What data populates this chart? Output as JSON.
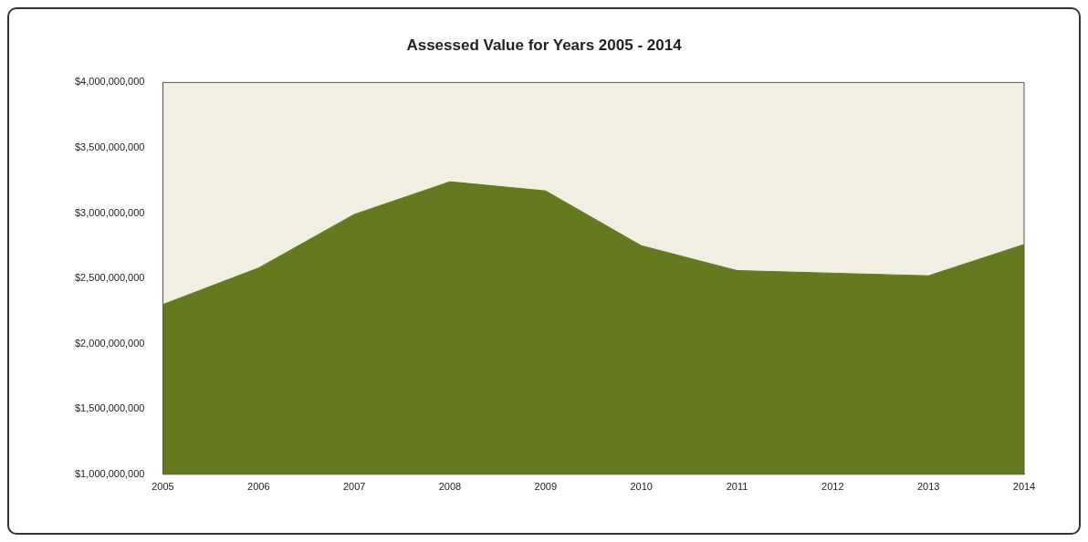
{
  "chart_data": {
    "type": "area",
    "title": "Assessed Value for Years 2005 - 2014",
    "categories": [
      "2005",
      "2006",
      "2007",
      "2008",
      "2009",
      "2010",
      "2011",
      "2012",
      "2013",
      "2014"
    ],
    "series": [
      {
        "color": "#657a1f",
        "values": [
          2300000000,
          2580000000,
          2990000000,
          3240000000,
          3170000000,
          2750000000,
          2560000000,
          2540000000,
          2520000000,
          2760000000
        ]
      }
    ],
    "ylim": [
      1000000000,
      4000000000
    ],
    "yticks": [
      {
        "value": 1000000000,
        "label": "$1,000,000,000"
      },
      {
        "value": 1500000000,
        "label": "$1,500,000,000"
      },
      {
        "value": 2000000000,
        "label": "$2,000,000,000"
      },
      {
        "value": 2500000000,
        "label": "$2,500,000,000"
      },
      {
        "value": 3000000000,
        "label": "$3,000,000,000"
      },
      {
        "value": 3500000000,
        "label": "$3,500,000,000"
      },
      {
        "value": 4000000000,
        "label": "$4,000,000,000"
      }
    ],
    "grid": false,
    "legend": false
  }
}
